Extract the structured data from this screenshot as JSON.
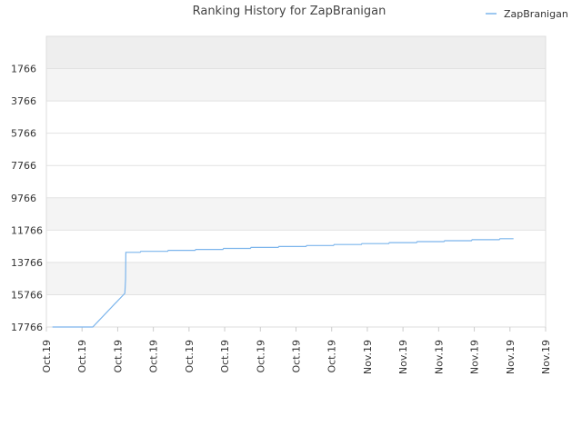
{
  "chart_data": {
    "type": "line",
    "title": "Ranking History for ZapBranigan",
    "legend": {
      "position": "top-right",
      "entries": [
        "ZapBranigan"
      ]
    },
    "y_reversed": true,
    "yticks": [
      "1766",
      "3766",
      "5766",
      "7766",
      "9766",
      "11766",
      "13766",
      "15766",
      "17766"
    ],
    "ylim": [
      -234,
      17766
    ],
    "xticks": [
      "Oct.19",
      "Oct.19",
      "Oct.19",
      "Oct.19",
      "Oct.19",
      "Oct.19",
      "Oct.19",
      "Oct.19",
      "Oct.19",
      "Nov.19",
      "Nov.19",
      "Nov.19",
      "Nov.19",
      "Nov.19",
      "Nov.19"
    ],
    "xlim": [
      0,
      14
    ],
    "grid": true,
    "series": [
      {
        "name": "ZapBranigan",
        "color": "#7cb5ec",
        "points": [
          [
            0.17,
            17766
          ],
          [
            1.3,
            17766
          ],
          [
            2.2,
            15680
          ],
          [
            2.22,
            14800
          ],
          [
            2.23,
            13140
          ],
          [
            2.63,
            13140
          ],
          [
            2.65,
            13080
          ],
          [
            3.4,
            13080
          ],
          [
            3.42,
            13020
          ],
          [
            4.17,
            13020
          ],
          [
            4.19,
            12960
          ],
          [
            4.95,
            12960
          ],
          [
            4.97,
            12900
          ],
          [
            5.72,
            12900
          ],
          [
            5.74,
            12840
          ],
          [
            6.5,
            12840
          ],
          [
            6.52,
            12780
          ],
          [
            7.28,
            12780
          ],
          [
            7.3,
            12720
          ],
          [
            8.05,
            12720
          ],
          [
            8.07,
            12660
          ],
          [
            8.83,
            12660
          ],
          [
            8.85,
            12600
          ],
          [
            9.6,
            12600
          ],
          [
            9.62,
            12540
          ],
          [
            10.38,
            12540
          ],
          [
            10.4,
            12480
          ],
          [
            11.15,
            12480
          ],
          [
            11.17,
            12420
          ],
          [
            11.92,
            12420
          ],
          [
            11.94,
            12360
          ],
          [
            12.7,
            12360
          ],
          [
            12.72,
            12300
          ],
          [
            13.1,
            12300
          ]
        ]
      }
    ]
  }
}
